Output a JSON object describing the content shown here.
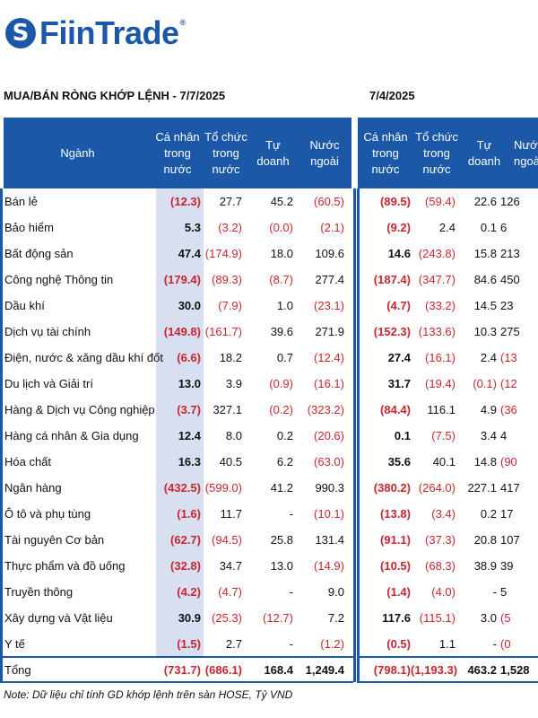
{
  "brand": {
    "name": "FiinTrade",
    "reg_mark": "®",
    "color": "#1b58a8"
  },
  "section_left_title": "MUA/BÁN RÒNG KHỚP LỆNH - 7/7/2025",
  "section_right_title": "7/4/2025",
  "headers": {
    "sector": "Ngành",
    "individual": "Cá nhân\ntrong\nnước",
    "institution": "Tổ chức\ntrong\nnước",
    "proprietary": "Tự doanh",
    "foreign": "Nước\nngoài",
    "individual_r": "Cá nhân\ntrong nước",
    "institution_r": "Tổ chức\ntrong\nnước",
    "proprietary_r": "Tự doanh",
    "foreign_r": "Nướ\nngoà"
  },
  "rows": [
    {
      "name": "Bán lẻ",
      "l": [
        "(12.3)",
        "27.7",
        "45.2",
        "(60.5)"
      ],
      "r": [
        "(89.5)",
        "(59.4)",
        "22.6",
        "126"
      ]
    },
    {
      "name": "Bảo hiểm",
      "l": [
        "5.3",
        "(3.2)",
        "(0.0)",
        "(2.1)"
      ],
      "r": [
        "(9.2)",
        "2.4",
        "0.1",
        "6"
      ]
    },
    {
      "name": "Bất động sản",
      "l": [
        "47.4",
        "(174.9)",
        "18.0",
        "109.6"
      ],
      "r": [
        "14.6",
        "(243.8)",
        "15.8",
        "213"
      ]
    },
    {
      "name": "Công nghệ Thông tin",
      "l": [
        "(179.4)",
        "(89.3)",
        "(8.7)",
        "277.4"
      ],
      "r": [
        "(187.4)",
        "(347.7)",
        "84.6",
        "450"
      ]
    },
    {
      "name": "Dầu khí",
      "l": [
        "30.0",
        "(7.9)",
        "1.0",
        "(23.1)"
      ],
      "r": [
        "(4.7)",
        "(33.2)",
        "14.5",
        "23"
      ]
    },
    {
      "name": "Dịch vụ tài chính",
      "l": [
        "(149.8)",
        "(161.7)",
        "39.6",
        "271.9"
      ],
      "r": [
        "(152.3)",
        "(133.6)",
        "10.3",
        "275"
      ]
    },
    {
      "name": "Điện, nước & xăng dầu khí đốt",
      "l": [
        "(6.6)",
        "18.2",
        "0.7",
        "(12.4)"
      ],
      "r": [
        "27.4",
        "(16.1)",
        "2.4",
        "(13"
      ]
    },
    {
      "name": "Du lịch và Giải trí",
      "l": [
        "13.0",
        "3.9",
        "(0.9)",
        "(16.1)"
      ],
      "r": [
        "31.7",
        "(19.4)",
        "(0.1)",
        "(12"
      ]
    },
    {
      "name": "Hàng & Dịch vụ Công nghiệp",
      "l": [
        "(3.7)",
        "327.1",
        "(0.2)",
        "(323.2)"
      ],
      "r": [
        "(84.4)",
        "116.1",
        "4.9",
        "(36"
      ]
    },
    {
      "name": "Hàng cá nhân & Gia dụng",
      "l": [
        "12.4",
        "8.0",
        "0.2",
        "(20.6)"
      ],
      "r": [
        "0.1",
        "(7.5)",
        "3.4",
        "4"
      ]
    },
    {
      "name": "Hóa chất",
      "l": [
        "16.3",
        "40.5",
        "6.2",
        "(63.0)"
      ],
      "r": [
        "35.6",
        "40.1",
        "14.8",
        "(90"
      ]
    },
    {
      "name": "Ngân hàng",
      "l": [
        "(432.5)",
        "(599.0)",
        "41.2",
        "990.3"
      ],
      "r": [
        "(380.2)",
        "(264.0)",
        "227.1",
        "417"
      ]
    },
    {
      "name": "Ô tô và phụ tùng",
      "l": [
        "(1.6)",
        "11.7",
        "-",
        "(10.1)"
      ],
      "r": [
        "(13.8)",
        "(3.4)",
        "0.2",
        "17"
      ]
    },
    {
      "name": "Tài nguyên Cơ bản",
      "l": [
        "(62.7)",
        "(94.5)",
        "25.8",
        "131.4"
      ],
      "r": [
        "(91.1)",
        "(37.3)",
        "20.8",
        "107"
      ]
    },
    {
      "name": "Thực phẩm và đồ uống",
      "l": [
        "(32.8)",
        "34.7",
        "13.0",
        "(14.9)"
      ],
      "r": [
        "(10.5)",
        "(68.3)",
        "38.9",
        "39"
      ]
    },
    {
      "name": "Truyền thông",
      "l": [
        "(4.2)",
        "(4.7)",
        "-",
        "9.0"
      ],
      "r": [
        "(1.4)",
        "(4.0)",
        "-",
        "5"
      ]
    },
    {
      "name": "Xây dựng và Vật liệu",
      "l": [
        "30.9",
        "(25.3)",
        "(12.7)",
        "7.2"
      ],
      "r": [
        "117.6",
        "(115.1)",
        "3.0",
        "(5"
      ]
    },
    {
      "name": "Y tế",
      "l": [
        "(1.5)",
        "2.7",
        "-",
        "(1.2)"
      ],
      "r": [
        "(0.5)",
        "1.1",
        "-",
        "(0"
      ]
    }
  ],
  "total": {
    "name": "Tổng",
    "l": [
      "(731.7)",
      "(686.1)",
      "168.4",
      "1,249.4"
    ],
    "r": [
      "(798.1)",
      "(1,193.3)",
      "463.2",
      "1,528"
    ]
  },
  "note": "Note: Dữ liệu chỉ tính GD khớp lệnh trên sàn HOSE, Tỷ VND"
}
